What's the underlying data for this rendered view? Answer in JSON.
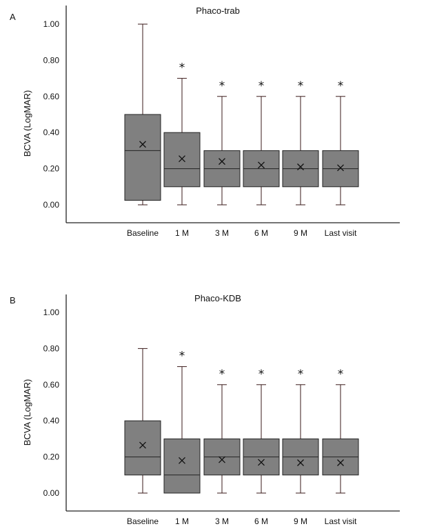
{
  "colors": {
    "box_fill": "#808080",
    "axis": "#222222"
  },
  "chart_data": [
    {
      "type": "box",
      "panel_label": "A",
      "title": "Phaco-trab",
      "ylabel": "BCVA (LogMAR)",
      "ylim": [
        -0.1,
        1.1
      ],
      "yticks": [
        "0.00",
        "0.20",
        "0.40",
        "0.60",
        "0.80",
        "1.00"
      ],
      "categories": [
        "Baseline",
        "1 M",
        "3 M",
        "6 M",
        "9 M",
        "Last visit"
      ],
      "boxes": [
        {
          "min": 0.0,
          "q1": 0.025,
          "median": 0.3,
          "q3": 0.5,
          "max": 1.0,
          "mean": 0.335,
          "marker": ""
        },
        {
          "min": 0.0,
          "q1": 0.1,
          "median": 0.2,
          "q3": 0.4,
          "max": 0.7,
          "mean": 0.255,
          "marker": "*"
        },
        {
          "min": 0.0,
          "q1": 0.1,
          "median": 0.2,
          "q3": 0.3,
          "max": 0.6,
          "mean": 0.24,
          "marker": "*"
        },
        {
          "min": 0.0,
          "q1": 0.1,
          "median": 0.2,
          "q3": 0.3,
          "max": 0.6,
          "mean": 0.22,
          "marker": "*"
        },
        {
          "min": 0.0,
          "q1": 0.1,
          "median": 0.2,
          "q3": 0.3,
          "max": 0.6,
          "mean": 0.21,
          "marker": "*"
        },
        {
          "min": 0.0,
          "q1": 0.1,
          "median": 0.2,
          "q3": 0.3,
          "max": 0.6,
          "mean": 0.205,
          "marker": "*"
        }
      ]
    },
    {
      "type": "box",
      "panel_label": "B",
      "title": "Phaco-KDB",
      "ylabel": "BCVA (LogMAR)",
      "ylim": [
        -0.1,
        1.1
      ],
      "yticks": [
        "0.00",
        "0.20",
        "0.40",
        "0.60",
        "0.80",
        "1.00"
      ],
      "categories": [
        "Baseline",
        "1 M",
        "3 M",
        "6 M",
        "9 M",
        "Last visit"
      ],
      "boxes": [
        {
          "min": 0.0,
          "q1": 0.1,
          "median": 0.2,
          "q3": 0.4,
          "max": 0.8,
          "mean": 0.265,
          "marker": ""
        },
        {
          "min": 0.0,
          "q1": 0.0,
          "median": 0.1,
          "q3": 0.3,
          "max": 0.7,
          "mean": 0.18,
          "marker": "*"
        },
        {
          "min": 0.0,
          "q1": 0.1,
          "median": 0.2,
          "q3": 0.3,
          "max": 0.6,
          "mean": 0.185,
          "marker": "*"
        },
        {
          "min": 0.0,
          "q1": 0.1,
          "median": 0.2,
          "q3": 0.3,
          "max": 0.6,
          "mean": 0.17,
          "marker": "*"
        },
        {
          "min": 0.0,
          "q1": 0.1,
          "median": 0.2,
          "q3": 0.3,
          "max": 0.6,
          "mean": 0.168,
          "marker": "*"
        },
        {
          "min": 0.0,
          "q1": 0.1,
          "median": 0.2,
          "q3": 0.3,
          "max": 0.6,
          "mean": 0.168,
          "marker": "*"
        }
      ]
    }
  ]
}
